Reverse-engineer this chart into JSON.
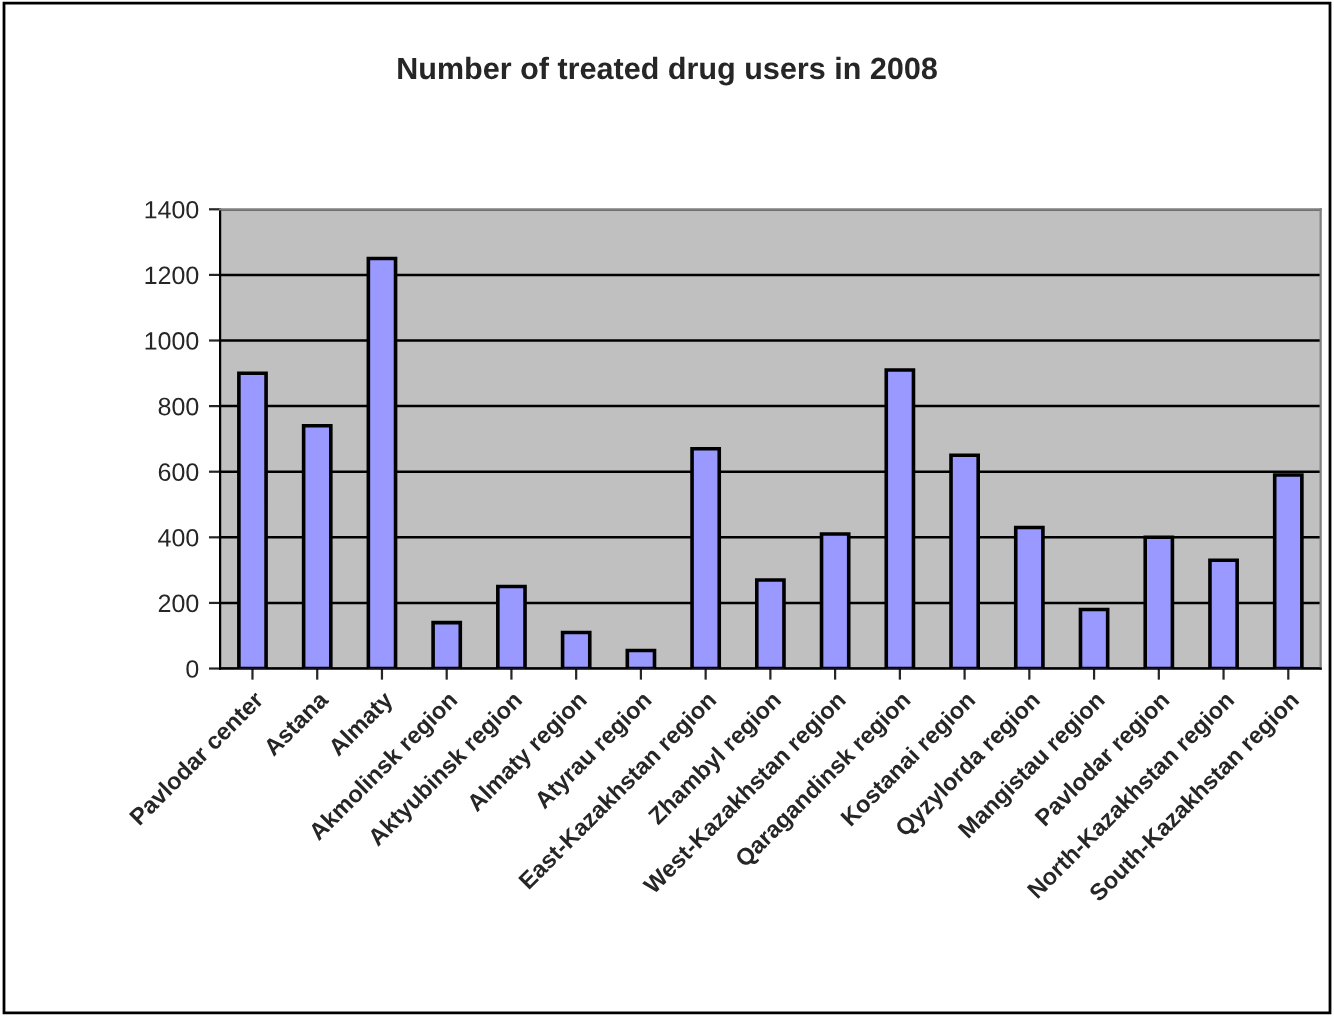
{
  "chart_data": {
    "type": "bar",
    "title": "Number of treated drug users in 2008",
    "categories": [
      "Pavlodar center",
      "Astana",
      "Almaty",
      "Akmolinsk region",
      "Aktyubinsk region",
      "Almaty region",
      "Atyrau region",
      "East-Kazakhstan region",
      "Zhambyl region",
      "West-Kazakhstan region",
      "Qaragandinsk region",
      "Kostanai region",
      "Qyzylorda region",
      "Mangistau region",
      "Pavlodar region",
      "North-Kazakhstan region",
      "South-Kazakhstan region"
    ],
    "values": [
      900,
      740,
      1250,
      140,
      250,
      110,
      55,
      670,
      270,
      410,
      910,
      650,
      430,
      180,
      400,
      330,
      590
    ],
    "color": "#9999ff",
    "ylim": [
      0,
      1400
    ],
    "yticks": [
      0,
      200,
      400,
      600,
      800,
      1000,
      1200,
      1400
    ],
    "grid": "y",
    "legend": false
  }
}
